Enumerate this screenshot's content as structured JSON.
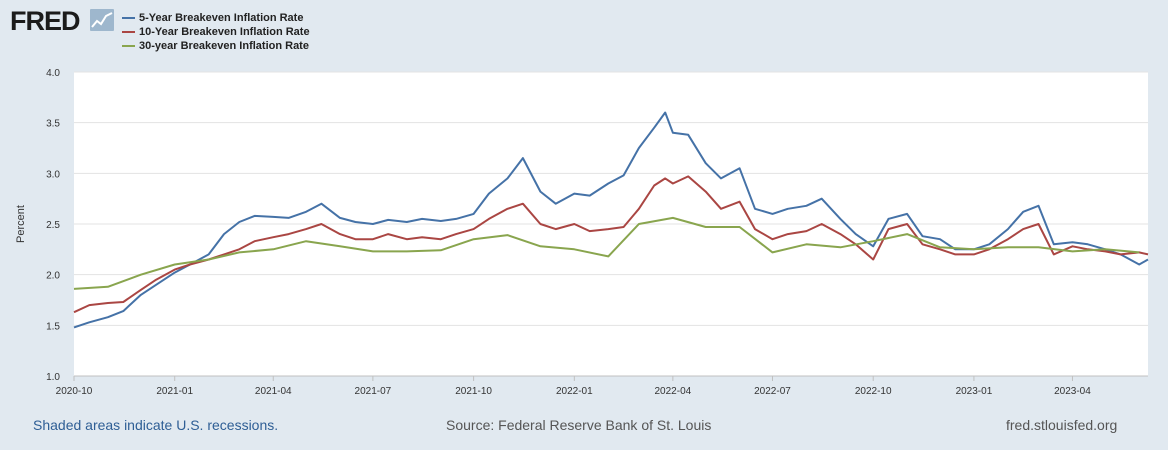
{
  "logo": {
    "text": "FRED"
  },
  "footer": {
    "recession_note": "Shaded areas indicate U.S. recessions.",
    "source": "Source: Federal Reserve Bank of St. Louis",
    "site": "fred.stlouisfed.org"
  },
  "colors": {
    "background": "#e1e9f0",
    "plot_area": "#ffffff",
    "grid": "#e3e3e3",
    "series_5y": "#4572a7",
    "series_10y": "#aa4643",
    "series_30y": "#89a54e"
  },
  "icons": {
    "logo_mark": "line-graph-icon"
  },
  "chart_data": {
    "type": "line",
    "title": "",
    "xlabel": "",
    "ylabel": "Percent",
    "xlim": [
      "2020-10-01",
      "2023-06-09"
    ],
    "ylim": [
      1.0,
      4.0
    ],
    "yticks": [
      1.0,
      1.5,
      2.0,
      2.5,
      3.0,
      3.5,
      4.0
    ],
    "ytick_labels": [
      "1.0",
      "1.5",
      "2.0",
      "2.5",
      "3.0",
      "3.5",
      "4.0"
    ],
    "xticks": [
      "2020-10-01",
      "2021-01-01",
      "2021-04-01",
      "2021-07-01",
      "2021-10-01",
      "2022-01-01",
      "2022-04-01",
      "2022-07-01",
      "2022-10-01",
      "2023-01-01",
      "2023-04-01"
    ],
    "xtick_labels": [
      "2020-10",
      "2021-01",
      "2021-04",
      "2021-07",
      "2021-10",
      "2022-01",
      "2022-04",
      "2022-07",
      "2022-10",
      "2023-01",
      "2023-04"
    ],
    "grid": "horizontal",
    "legend_position": "top-left",
    "series": [
      {
        "name": "5-Year Breakeven Inflation Rate",
        "color": "#4572a7",
        "points": [
          [
            "2020-10-01",
            1.48
          ],
          [
            "2020-10-15",
            1.53
          ],
          [
            "2020-11-01",
            1.58
          ],
          [
            "2020-11-15",
            1.64
          ],
          [
            "2020-12-01",
            1.8
          ],
          [
            "2020-12-15",
            1.9
          ],
          [
            "2021-01-01",
            2.02
          ],
          [
            "2021-01-15",
            2.1
          ],
          [
            "2021-02-01",
            2.2
          ],
          [
            "2021-02-15",
            2.4
          ],
          [
            "2021-03-01",
            2.52
          ],
          [
            "2021-03-15",
            2.58
          ],
          [
            "2021-04-01",
            2.57
          ],
          [
            "2021-04-15",
            2.56
          ],
          [
            "2021-05-01",
            2.62
          ],
          [
            "2021-05-15",
            2.7
          ],
          [
            "2021-06-01",
            2.56
          ],
          [
            "2021-06-15",
            2.52
          ],
          [
            "2021-07-01",
            2.5
          ],
          [
            "2021-07-15",
            2.54
          ],
          [
            "2021-08-01",
            2.52
          ],
          [
            "2021-08-15",
            2.55
          ],
          [
            "2021-09-01",
            2.53
          ],
          [
            "2021-09-15",
            2.55
          ],
          [
            "2021-10-01",
            2.6
          ],
          [
            "2021-10-15",
            2.8
          ],
          [
            "2021-11-01",
            2.95
          ],
          [
            "2021-11-15",
            3.15
          ],
          [
            "2021-12-01",
            2.82
          ],
          [
            "2021-12-15",
            2.7
          ],
          [
            "2022-01-01",
            2.8
          ],
          [
            "2022-01-15",
            2.78
          ],
          [
            "2022-02-01",
            2.9
          ],
          [
            "2022-02-15",
            2.98
          ],
          [
            "2022-03-01",
            3.25
          ],
          [
            "2022-03-15",
            3.45
          ],
          [
            "2022-03-25",
            3.6
          ],
          [
            "2022-04-01",
            3.4
          ],
          [
            "2022-04-15",
            3.38
          ],
          [
            "2022-05-01",
            3.1
          ],
          [
            "2022-05-15",
            2.95
          ],
          [
            "2022-06-01",
            3.05
          ],
          [
            "2022-06-15",
            2.65
          ],
          [
            "2022-07-01",
            2.6
          ],
          [
            "2022-07-15",
            2.65
          ],
          [
            "2022-08-01",
            2.68
          ],
          [
            "2022-08-15",
            2.75
          ],
          [
            "2022-09-01",
            2.55
          ],
          [
            "2022-09-15",
            2.4
          ],
          [
            "2022-10-01",
            2.28
          ],
          [
            "2022-10-15",
            2.55
          ],
          [
            "2022-11-01",
            2.6
          ],
          [
            "2022-11-15",
            2.38
          ],
          [
            "2022-12-01",
            2.35
          ],
          [
            "2022-12-15",
            2.25
          ],
          [
            "2023-01-01",
            2.25
          ],
          [
            "2023-01-15",
            2.3
          ],
          [
            "2023-02-01",
            2.45
          ],
          [
            "2023-02-15",
            2.62
          ],
          [
            "2023-03-01",
            2.68
          ],
          [
            "2023-03-15",
            2.3
          ],
          [
            "2023-04-01",
            2.32
          ],
          [
            "2023-04-15",
            2.3
          ],
          [
            "2023-05-01",
            2.25
          ],
          [
            "2023-05-15",
            2.2
          ],
          [
            "2023-06-01",
            2.1
          ],
          [
            "2023-06-09",
            2.15
          ]
        ]
      },
      {
        "name": "10-Year Breakeven Inflation Rate",
        "color": "#aa4643",
        "points": [
          [
            "2020-10-01",
            1.63
          ],
          [
            "2020-10-15",
            1.7
          ],
          [
            "2020-11-01",
            1.72
          ],
          [
            "2020-11-15",
            1.73
          ],
          [
            "2020-12-01",
            1.85
          ],
          [
            "2020-12-15",
            1.95
          ],
          [
            "2021-01-01",
            2.05
          ],
          [
            "2021-01-15",
            2.1
          ],
          [
            "2021-02-01",
            2.15
          ],
          [
            "2021-02-15",
            2.2
          ],
          [
            "2021-03-01",
            2.25
          ],
          [
            "2021-03-15",
            2.33
          ],
          [
            "2021-04-01",
            2.37
          ],
          [
            "2021-04-15",
            2.4
          ],
          [
            "2021-05-01",
            2.45
          ],
          [
            "2021-05-15",
            2.5
          ],
          [
            "2021-06-01",
            2.4
          ],
          [
            "2021-06-15",
            2.35
          ],
          [
            "2021-07-01",
            2.35
          ],
          [
            "2021-07-15",
            2.4
          ],
          [
            "2021-08-01",
            2.35
          ],
          [
            "2021-08-15",
            2.37
          ],
          [
            "2021-09-01",
            2.35
          ],
          [
            "2021-09-15",
            2.4
          ],
          [
            "2021-10-01",
            2.45
          ],
          [
            "2021-10-15",
            2.55
          ],
          [
            "2021-11-01",
            2.65
          ],
          [
            "2021-11-15",
            2.7
          ],
          [
            "2021-12-01",
            2.5
          ],
          [
            "2021-12-15",
            2.45
          ],
          [
            "2022-01-01",
            2.5
          ],
          [
            "2022-01-15",
            2.43
          ],
          [
            "2022-02-01",
            2.45
          ],
          [
            "2022-02-15",
            2.47
          ],
          [
            "2022-03-01",
            2.65
          ],
          [
            "2022-03-15",
            2.88
          ],
          [
            "2022-03-25",
            2.95
          ],
          [
            "2022-04-01",
            2.9
          ],
          [
            "2022-04-15",
            2.97
          ],
          [
            "2022-05-01",
            2.82
          ],
          [
            "2022-05-15",
            2.65
          ],
          [
            "2022-06-01",
            2.72
          ],
          [
            "2022-06-15",
            2.45
          ],
          [
            "2022-07-01",
            2.35
          ],
          [
            "2022-07-15",
            2.4
          ],
          [
            "2022-08-01",
            2.43
          ],
          [
            "2022-08-15",
            2.5
          ],
          [
            "2022-09-01",
            2.4
          ],
          [
            "2022-09-15",
            2.3
          ],
          [
            "2022-10-01",
            2.15
          ],
          [
            "2022-10-15",
            2.45
          ],
          [
            "2022-11-01",
            2.5
          ],
          [
            "2022-11-15",
            2.3
          ],
          [
            "2022-12-01",
            2.25
          ],
          [
            "2022-12-15",
            2.2
          ],
          [
            "2023-01-01",
            2.2
          ],
          [
            "2023-01-15",
            2.25
          ],
          [
            "2023-02-01",
            2.35
          ],
          [
            "2023-02-15",
            2.45
          ],
          [
            "2023-03-01",
            2.5
          ],
          [
            "2023-03-15",
            2.2
          ],
          [
            "2023-04-01",
            2.28
          ],
          [
            "2023-04-15",
            2.25
          ],
          [
            "2023-05-01",
            2.23
          ],
          [
            "2023-05-15",
            2.2
          ],
          [
            "2023-06-01",
            2.22
          ],
          [
            "2023-06-09",
            2.2
          ]
        ]
      },
      {
        "name": "30-year Breakeven Inflation Rate",
        "color": "#89a54e",
        "points": [
          [
            "2020-10-01",
            1.86
          ],
          [
            "2020-11-01",
            1.88
          ],
          [
            "2020-12-01",
            2.0
          ],
          [
            "2021-01-01",
            2.1
          ],
          [
            "2021-02-01",
            2.15
          ],
          [
            "2021-03-01",
            2.22
          ],
          [
            "2021-04-01",
            2.25
          ],
          [
            "2021-05-01",
            2.33
          ],
          [
            "2021-06-01",
            2.28
          ],
          [
            "2021-07-01",
            2.23
          ],
          [
            "2021-08-01",
            2.23
          ],
          [
            "2021-09-01",
            2.24
          ],
          [
            "2021-10-01",
            2.35
          ],
          [
            "2021-11-01",
            2.39
          ],
          [
            "2021-12-01",
            2.28
          ],
          [
            "2022-01-01",
            2.25
          ],
          [
            "2022-02-01",
            2.18
          ],
          [
            "2022-03-01",
            2.5
          ],
          [
            "2022-04-01",
            2.56
          ],
          [
            "2022-05-01",
            2.47
          ],
          [
            "2022-06-01",
            2.47
          ],
          [
            "2022-07-01",
            2.22
          ],
          [
            "2022-08-01",
            2.3
          ],
          [
            "2022-09-01",
            2.27
          ],
          [
            "2022-10-01",
            2.33
          ],
          [
            "2022-11-01",
            2.4
          ],
          [
            "2022-12-01",
            2.27
          ],
          [
            "2023-01-01",
            2.25
          ],
          [
            "2023-02-01",
            2.27
          ],
          [
            "2023-03-01",
            2.27
          ],
          [
            "2023-04-01",
            2.23
          ],
          [
            "2023-05-01",
            2.25
          ],
          [
            "2023-06-01",
            2.22
          ]
        ]
      }
    ]
  }
}
